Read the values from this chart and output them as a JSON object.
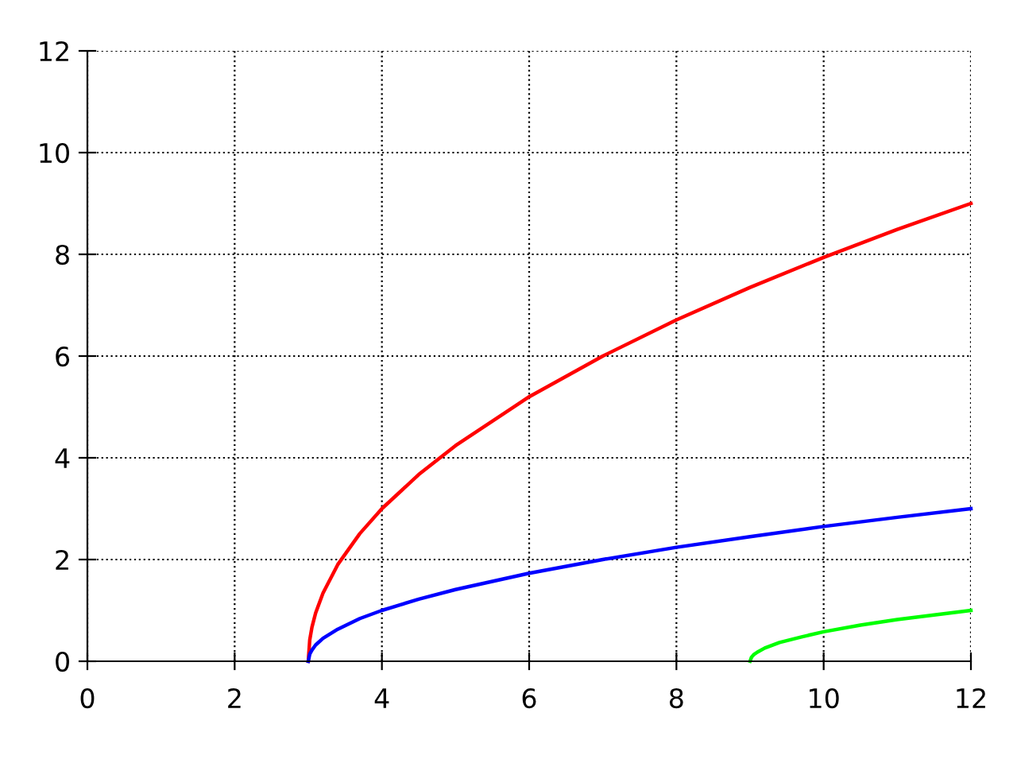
{
  "chart_data": {
    "type": "line",
    "xlim": [
      0,
      12
    ],
    "ylim": [
      0,
      12
    ],
    "xticks": [
      0,
      2,
      4,
      6,
      8,
      10,
      12
    ],
    "yticks": [
      0,
      2,
      4,
      6,
      8,
      10,
      12
    ],
    "grid": true,
    "marker": "none",
    "line_style": "solid",
    "series": [
      {
        "color": "#ff0000",
        "x": [
          3,
          3.02,
          3.05,
          3.1,
          3.2,
          3.4,
          3.7,
          4,
          4.5,
          5,
          6,
          7,
          8,
          9,
          10,
          11,
          12
        ],
        "values": [
          0,
          0.42,
          0.67,
          0.95,
          1.34,
          1.9,
          2.51,
          3,
          3.67,
          4.24,
          5.2,
          6,
          6.71,
          7.35,
          7.94,
          8.49,
          9
        ]
      },
      {
        "color": "#0000ff",
        "x": [
          3,
          3.02,
          3.05,
          3.1,
          3.2,
          3.4,
          3.7,
          4,
          4.5,
          5,
          6,
          7,
          8,
          9,
          10,
          11,
          12
        ],
        "values": [
          0,
          0.14,
          0.22,
          0.32,
          0.45,
          0.63,
          0.84,
          1,
          1.22,
          1.41,
          1.73,
          2,
          2.24,
          2.45,
          2.65,
          2.83,
          3
        ]
      },
      {
        "color": "#00ff00",
        "x": [
          9,
          9.02,
          9.05,
          9.1,
          9.2,
          9.4,
          9.7,
          10,
          10.5,
          11,
          11.5,
          12
        ],
        "values": [
          0,
          0.08,
          0.13,
          0.18,
          0.26,
          0.37,
          0.48,
          0.58,
          0.71,
          0.82,
          0.91,
          1
        ]
      }
    ]
  }
}
